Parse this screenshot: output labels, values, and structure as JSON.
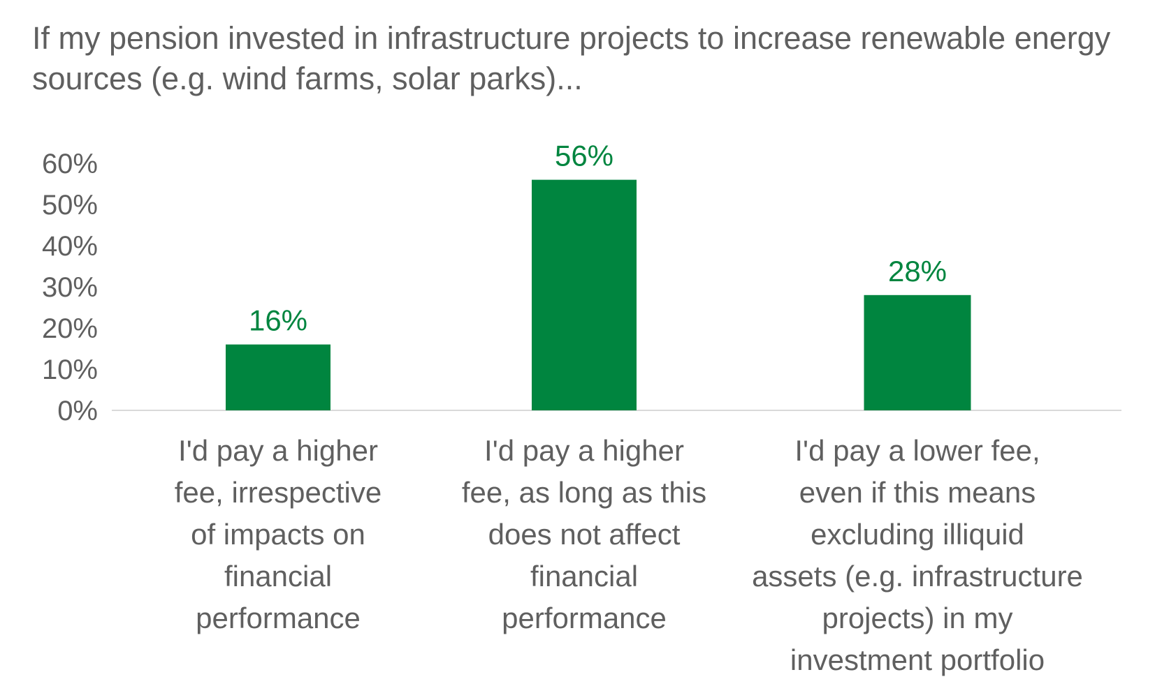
{
  "chart_data": {
    "type": "bar",
    "title": "If my pension invested in infrastructure projects to increase renewable energy sources (e.g. wind farms, solar parks)...",
    "categories": [
      [
        "I'd pay a higher",
        "fee, irrespective",
        "of impacts on",
        "financial",
        "performance"
      ],
      [
        "I'd pay a higher",
        "fee, as long as this",
        "does not affect",
        "financial",
        "performance"
      ],
      [
        "I'd pay a lower fee,",
        "even if this means",
        "excluding illiquid",
        "assets (e.g. infrastructure",
        "projects) in my",
        "investment portfolio"
      ]
    ],
    "values": [
      16,
      56,
      28
    ],
    "data_labels": [
      "16%",
      "56%",
      "28%"
    ],
    "ylim": [
      0,
      60
    ],
    "yticks": [
      0,
      10,
      20,
      30,
      40,
      50,
      60
    ],
    "ytick_labels": [
      "0%",
      "10%",
      "20%",
      "30%",
      "40%",
      "50%",
      "60%"
    ],
    "xlabel": "",
    "ylabel": "",
    "grid": false,
    "legend": "none",
    "colors": {
      "bar": "#00853f",
      "data_label": "#00853f",
      "axis_line": "#d9d9d9",
      "text": "#5f5f5f"
    }
  }
}
